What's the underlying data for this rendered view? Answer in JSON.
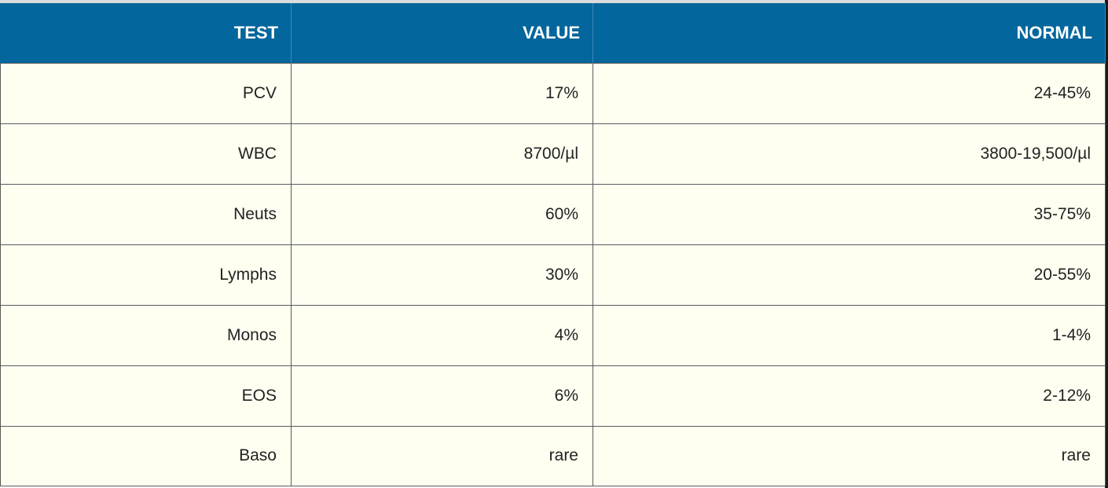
{
  "table": {
    "headers": [
      "TEST",
      "VALUE",
      "NORMAL"
    ],
    "rows": [
      [
        "PCV",
        "17%",
        "24-45%"
      ],
      [
        "WBC",
        "8700/µl",
        "3800-19,500/µl"
      ],
      [
        "Neuts",
        "60%",
        "35-75%"
      ],
      [
        "Lymphs",
        "30%",
        "20-55%"
      ],
      [
        "Monos",
        "4%",
        "1-4%"
      ],
      [
        "EOS",
        "6%",
        "2-12%"
      ],
      [
        "Baso",
        "rare",
        "rare"
      ]
    ]
  },
  "colors": {
    "header_background": "#03669c",
    "header_text": "#ffffff",
    "cell_background": "#fffff1",
    "cell_text": "#222222",
    "grid_lines": "#5a5a5a"
  }
}
